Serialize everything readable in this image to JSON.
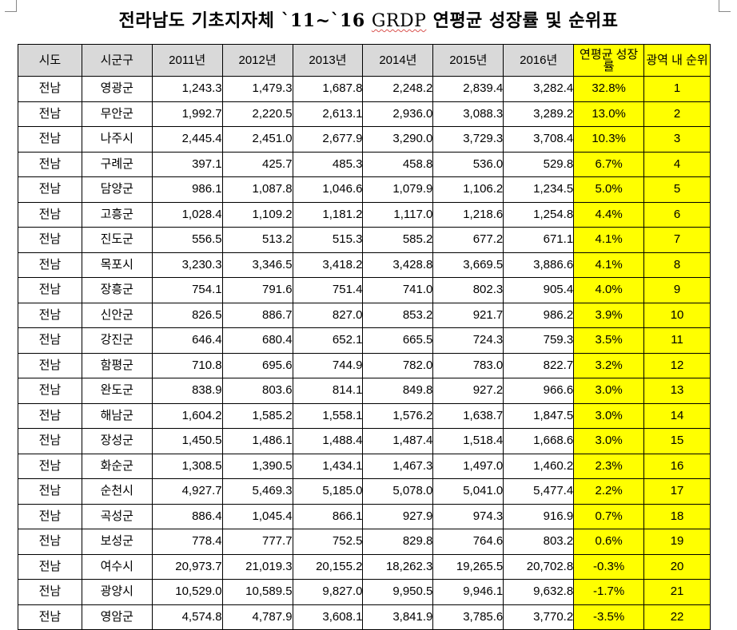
{
  "title": {
    "prefix": "전라남도 기초지자체 `11~`16 ",
    "grdp": "GRDP",
    "suffix": " 연평균 성장률 및 순위표"
  },
  "headers": [
    "시도",
    "시군구",
    "2011년",
    "2012년",
    "2013년",
    "2014년",
    "2015년",
    "2016년",
    "연평균 성장률",
    "광역 내 순위"
  ],
  "rows": [
    [
      "전남",
      "영광군",
      "1,243.3",
      "1,479.3",
      "1,687.8",
      "2,248.2",
      "2,839.4",
      "3,282.4",
      "32.8%",
      "1"
    ],
    [
      "전남",
      "무안군",
      "1,992.7",
      "2,220.5",
      "2,613.1",
      "2,936.0",
      "3,088.3",
      "3,289.2",
      "13.0%",
      "2"
    ],
    [
      "전남",
      "나주시",
      "2,445.4",
      "2,451.0",
      "2,677.9",
      "3,290.0",
      "3,729.3",
      "3,708.4",
      "10.3%",
      "3"
    ],
    [
      "전남",
      "구례군",
      "397.1",
      "425.7",
      "485.3",
      "458.8",
      "536.0",
      "529.8",
      "6.7%",
      "4"
    ],
    [
      "전남",
      "담양군",
      "986.1",
      "1,087.8",
      "1,046.6",
      "1,079.9",
      "1,106.2",
      "1,234.5",
      "5.0%",
      "5"
    ],
    [
      "전남",
      "고흥군",
      "1,028.4",
      "1,109.2",
      "1,181.2",
      "1,117.0",
      "1,218.6",
      "1,254.8",
      "4.4%",
      "6"
    ],
    [
      "전남",
      "진도군",
      "556.5",
      "513.2",
      "515.3",
      "585.2",
      "677.2",
      "671.1",
      "4.1%",
      "7"
    ],
    [
      "전남",
      "목포시",
      "3,230.3",
      "3,346.5",
      "3,418.2",
      "3,428.8",
      "3,669.5",
      "3,886.6",
      "4.1%",
      "8"
    ],
    [
      "전남",
      "장흥군",
      "754.1",
      "791.6",
      "751.4",
      "741.0",
      "802.3",
      "905.4",
      "4.0%",
      "9"
    ],
    [
      "전남",
      "신안군",
      "826.5",
      "886.7",
      "827.0",
      "853.2",
      "921.7",
      "986.2",
      "3.9%",
      "10"
    ],
    [
      "전남",
      "강진군",
      "646.4",
      "680.4",
      "652.1",
      "665.5",
      "724.3",
      "759.3",
      "3.5%",
      "11"
    ],
    [
      "전남",
      "함평군",
      "710.8",
      "695.6",
      "744.9",
      "782.0",
      "783.0",
      "822.7",
      "3.2%",
      "12"
    ],
    [
      "전남",
      "완도군",
      "838.9",
      "803.6",
      "814.1",
      "849.8",
      "927.2",
      "966.6",
      "3.0%",
      "13"
    ],
    [
      "전남",
      "해남군",
      "1,604.2",
      "1,585.2",
      "1,558.1",
      "1,576.2",
      "1,638.7",
      "1,847.5",
      "3.0%",
      "14"
    ],
    [
      "전남",
      "장성군",
      "1,450.5",
      "1,486.1",
      "1,488.4",
      "1,487.4",
      "1,518.4",
      "1,668.6",
      "3.0%",
      "15"
    ],
    [
      "전남",
      "화순군",
      "1,308.5",
      "1,390.5",
      "1,434.1",
      "1,467.3",
      "1,497.0",
      "1,460.2",
      "2.3%",
      "16"
    ],
    [
      "전남",
      "순천시",
      "4,927.7",
      "5,469.3",
      "5,185.0",
      "5,078.0",
      "5,041.0",
      "5,477.4",
      "2.2%",
      "17"
    ],
    [
      "전남",
      "곡성군",
      "886.4",
      "1,045.4",
      "866.1",
      "927.9",
      "974.3",
      "916.9",
      "0.7%",
      "18"
    ],
    [
      "전남",
      "보성군",
      "778.4",
      "777.7",
      "752.5",
      "829.8",
      "764.6",
      "803.2",
      "0.6%",
      "19"
    ],
    [
      "전남",
      "여수시",
      "20,973.7",
      "21,019.3",
      "20,155.2",
      "18,262.3",
      "19,265.5",
      "20,702.8",
      "-0.3%",
      "20"
    ],
    [
      "전남",
      "광양시",
      "10,529.0",
      "10,589.5",
      "9,827.0",
      "9,950.5",
      "9,946.1",
      "9,632.8",
      "-1.7%",
      "21"
    ],
    [
      "전남",
      "영암군",
      "4,574.8",
      "4,787.9",
      "3,608.1",
      "3,841.9",
      "3,785.6",
      "3,770.2",
      "-3.5%",
      "22"
    ]
  ],
  "colors": {
    "header_bg": "#d9d9d9",
    "highlight_bg": "#ffff00",
    "border": "#000000"
  }
}
